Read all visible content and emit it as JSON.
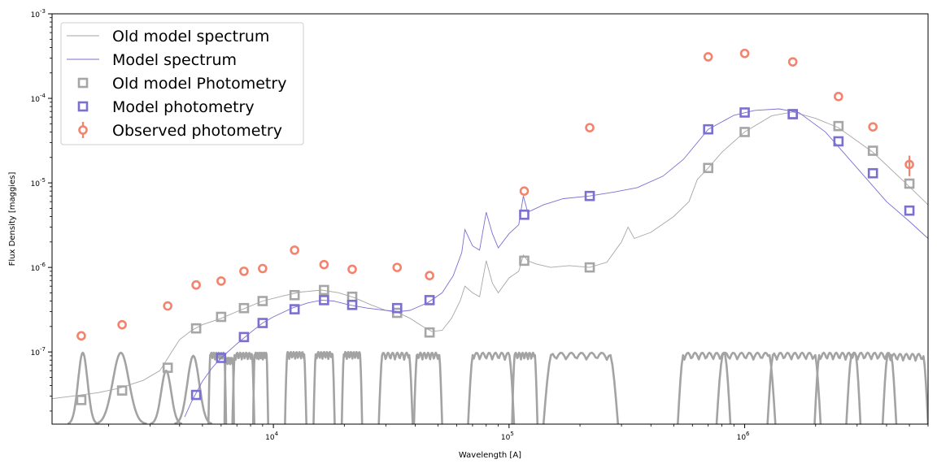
{
  "chart_data": {
    "type": "scatter",
    "xlabel": "Wavelength [A]",
    "ylabel": "Flux Density [maggies]",
    "xscale": "log",
    "yscale": "log",
    "xlim": [
      1150,
      6000000
    ],
    "ylim": [
      1.4e-08,
      0.001
    ],
    "x_ticks": [
      {
        "value": 10000,
        "label": "10^4"
      },
      {
        "value": 100000,
        "label": "10^5"
      },
      {
        "value": 1000000,
        "label": "10^6"
      }
    ],
    "y_ticks": [
      {
        "value": 1e-07,
        "label": "10^-7"
      },
      {
        "value": 1e-06,
        "label": "10^-6"
      },
      {
        "value": 1e-05,
        "label": "10^-5"
      },
      {
        "value": 0.0001,
        "label": "10^-4"
      },
      {
        "value": 0.001,
        "label": "10^-3"
      }
    ],
    "legend": {
      "position": "top-left",
      "entries": [
        "Old model spectrum",
        "Model spectrum",
        "Old model Photometry",
        "Model photometry",
        "Observed photometry"
      ]
    },
    "colors": {
      "old_model": "#a6a6a6",
      "model": "#7b6fd0",
      "observed": "#f4826c",
      "filters": "#a3a3a3"
    },
    "series": [
      {
        "name": "Old model spectrum",
        "kind": "line",
        "points": [
          [
            1150,
            2.8e-08
          ],
          [
            1400,
            3e-08
          ],
          [
            1800,
            3.3e-08
          ],
          [
            2200,
            3.7e-08
          ],
          [
            2800,
            4.6e-08
          ],
          [
            3300,
            6e-08
          ],
          [
            3700,
            1e-07
          ],
          [
            4000,
            1.4e-07
          ],
          [
            4500,
            1.8e-07
          ],
          [
            5000,
            2.1e-07
          ],
          [
            6000,
            2.5e-07
          ],
          [
            7000,
            3e-07
          ],
          [
            8000,
            3.5e-07
          ],
          [
            9000,
            4e-07
          ],
          [
            11000,
            4.6e-07
          ],
          [
            13000,
            5.1e-07
          ],
          [
            16000,
            5.4e-07
          ],
          [
            19000,
            5e-07
          ],
          [
            22000,
            4.4e-07
          ],
          [
            26000,
            3.6e-07
          ],
          [
            30000,
            3.1e-07
          ],
          [
            34000,
            2.9e-07
          ],
          [
            38000,
            2.5e-07
          ],
          [
            43000,
            2e-07
          ],
          [
            47000,
            1.75e-07
          ],
          [
            52000,
            1.8e-07
          ],
          [
            57000,
            2.5e-07
          ],
          [
            62000,
            4e-07
          ],
          [
            65000,
            6e-07
          ],
          [
            70000,
            5e-07
          ],
          [
            75000,
            4.5e-07
          ],
          [
            80000,
            1.2e-06
          ],
          [
            85000,
            6.5e-07
          ],
          [
            90000,
            5e-07
          ],
          [
            100000,
            7.5e-07
          ],
          [
            110000,
            9e-07
          ],
          [
            115000,
            1.4e-06
          ],
          [
            120000,
            1.2e-06
          ],
          [
            130000,
            1.1e-06
          ],
          [
            150000,
            1e-06
          ],
          [
            180000,
            1.05e-06
          ],
          [
            220000,
            1e-06
          ],
          [
            260000,
            1.15e-06
          ],
          [
            300000,
            2e-06
          ],
          [
            320000,
            3e-06
          ],
          [
            340000,
            2.2e-06
          ],
          [
            400000,
            2.6e-06
          ],
          [
            500000,
            4e-06
          ],
          [
            580000,
            6e-06
          ],
          [
            630000,
            1.1e-05
          ],
          [
            700000,
            1.5e-05
          ],
          [
            800000,
            2.3e-05
          ],
          [
            1000000,
            4e-05
          ],
          [
            1300000,
            6.2e-05
          ],
          [
            1600000,
            6.9e-05
          ],
          [
            2000000,
            5.8e-05
          ],
          [
            2500000,
            4.5e-05
          ],
          [
            3500000,
            2.3e-05
          ],
          [
            5000000,
            9e-06
          ],
          [
            6000000,
            5.5e-06
          ]
        ]
      },
      {
        "name": "Model spectrum",
        "kind": "line",
        "points": [
          [
            4200,
            1.7e-08
          ],
          [
            4500,
            2.6e-08
          ],
          [
            5000,
            4.5e-08
          ],
          [
            5500,
            6.5e-08
          ],
          [
            6000,
            8.5e-08
          ],
          [
            7000,
            1.25e-07
          ],
          [
            8000,
            1.7e-07
          ],
          [
            9000,
            2.2e-07
          ],
          [
            10000,
            2.6e-07
          ],
          [
            12000,
            3.3e-07
          ],
          [
            14000,
            3.8e-07
          ],
          [
            16000,
            4.1e-07
          ],
          [
            18000,
            4e-07
          ],
          [
            21000,
            3.6e-07
          ],
          [
            25000,
            3.3e-07
          ],
          [
            30000,
            3.1e-07
          ],
          [
            34000,
            3e-07
          ],
          [
            38000,
            3.1e-07
          ],
          [
            45000,
            3.8e-07
          ],
          [
            52000,
            5e-07
          ],
          [
            58000,
            8e-07
          ],
          [
            63000,
            1.5e-06
          ],
          [
            65000,
            2.8e-06
          ],
          [
            70000,
            1.8e-06
          ],
          [
            75000,
            1.6e-06
          ],
          [
            80000,
            4.5e-06
          ],
          [
            85000,
            2.5e-06
          ],
          [
            90000,
            1.7e-06
          ],
          [
            100000,
            2.5e-06
          ],
          [
            110000,
            3.2e-06
          ],
          [
            115000,
            7e-06
          ],
          [
            120000,
            4.5e-06
          ],
          [
            140000,
            5.5e-06
          ],
          [
            170000,
            6.5e-06
          ],
          [
            220000,
            7e-06
          ],
          [
            280000,
            7.8e-06
          ],
          [
            350000,
            8.8e-06
          ],
          [
            450000,
            1.2e-05
          ],
          [
            550000,
            1.9e-05
          ],
          [
            700000,
            4.3e-05
          ],
          [
            900000,
            6.3e-05
          ],
          [
            1100000,
            7.2e-05
          ],
          [
            1400000,
            7.5e-05
          ],
          [
            1700000,
            6.8e-05
          ],
          [
            2200000,
            4e-05
          ],
          [
            3000000,
            1.5e-05
          ],
          [
            4000000,
            6e-06
          ],
          [
            5000000,
            3.5e-06
          ],
          [
            6000000,
            2.2e-06
          ]
        ]
      },
      {
        "name": "Old model Photometry",
        "kind": "markers",
        "points": [
          [
            1530,
            2.7e-08
          ],
          [
            2280,
            3.5e-08
          ],
          [
            3560,
            6.5e-08
          ],
          [
            4700,
            1.9e-07
          ],
          [
            6000,
            2.6e-07
          ],
          [
            7500,
            3.3e-07
          ],
          [
            9000,
            4e-07
          ],
          [
            12300,
            4.7e-07
          ],
          [
            16400,
            5.4e-07
          ],
          [
            21600,
            4.5e-07
          ],
          [
            33500,
            2.9e-07
          ],
          [
            46000,
            1.7e-07
          ],
          [
            116000,
            1.2e-06
          ],
          [
            220000,
            1e-06
          ],
          [
            700000,
            1.5e-05
          ],
          [
            1000000,
            4e-05
          ],
          [
            1600000,
            6.5e-05
          ],
          [
            2500000,
            4.7e-05
          ],
          [
            3500000,
            2.4e-05
          ],
          [
            5000000,
            9.8e-06
          ]
        ]
      },
      {
        "name": "Model photometry",
        "kind": "markers",
        "points": [
          [
            4700,
            3.1e-08
          ],
          [
            6000,
            8.5e-08
          ],
          [
            7500,
            1.5e-07
          ],
          [
            9000,
            2.2e-07
          ],
          [
            12300,
            3.2e-07
          ],
          [
            16400,
            4.1e-07
          ],
          [
            21600,
            3.6e-07
          ],
          [
            33500,
            3.3e-07
          ],
          [
            46000,
            4.1e-07
          ],
          [
            116000,
            4.2e-06
          ],
          [
            220000,
            7e-06
          ],
          [
            700000,
            4.3e-05
          ],
          [
            1000000,
            6.8e-05
          ],
          [
            1600000,
            6.5e-05
          ],
          [
            2500000,
            3.1e-05
          ],
          [
            3500000,
            1.3e-05
          ],
          [
            5000000,
            4.7e-06
          ]
        ]
      },
      {
        "name": "Observed photometry",
        "kind": "errorbar",
        "points": [
          [
            1530,
            1.55e-07,
            0
          ],
          [
            2280,
            2.1e-07,
            0
          ],
          [
            3560,
            3.5e-07,
            0
          ],
          [
            4700,
            6.2e-07,
            0
          ],
          [
            6000,
            6.9e-07,
            0
          ],
          [
            7500,
            9e-07,
            0
          ],
          [
            9000,
            9.7e-07,
            0
          ],
          [
            12300,
            1.6e-06,
            0
          ],
          [
            16400,
            1.08e-06,
            0
          ],
          [
            21600,
            9.5e-07,
            0
          ],
          [
            33500,
            1e-06,
            0
          ],
          [
            46000,
            8e-07,
            0
          ],
          [
            116000,
            8e-06,
            0
          ],
          [
            220000,
            4.5e-05,
            0
          ],
          [
            700000,
            0.00031,
            0
          ],
          [
            1000000,
            0.00034,
            0
          ],
          [
            1600000,
            0.00027,
            0
          ],
          [
            2500000,
            0.000105,
            0
          ],
          [
            3500000,
            4.6e-05,
            0
          ],
          [
            5000000,
            1.65e-05,
            4.5e-06
          ]
        ]
      }
    ],
    "filter_curves": [
      {
        "lo": 1340,
        "hi": 1800,
        "peak": 9.8e-08,
        "shape": "bell"
      },
      {
        "lo": 1750,
        "hi": 2900,
        "peak": 9.8e-08,
        "shape": "bell"
      },
      {
        "lo": 3000,
        "hi": 4100,
        "peak": 6e-08,
        "shape": "bell"
      },
      {
        "lo": 3800,
        "hi": 5500,
        "peak": 9e-08,
        "shape": "bell"
      },
      {
        "lo": 5300,
        "hi": 6300,
        "peak": 9.8e-08,
        "shape": "box"
      },
      {
        "lo": 6200,
        "hi": 6800,
        "peak": 8.5e-08,
        "shape": "box"
      },
      {
        "lo": 6700,
        "hi": 8300,
        "peak": 9.8e-08,
        "shape": "box"
      },
      {
        "lo": 8200,
        "hi": 9500,
        "peak": 9.8e-08,
        "shape": "box"
      },
      {
        "lo": 11200,
        "hi": 13800,
        "peak": 1e-07,
        "shape": "box"
      },
      {
        "lo": 14800,
        "hi": 18200,
        "peak": 1e-07,
        "shape": "box"
      },
      {
        "lo": 19500,
        "hi": 23800,
        "peak": 1e-07,
        "shape": "box"
      },
      {
        "lo": 28000,
        "hi": 39000,
        "peak": 9.8e-08,
        "shape": "box"
      },
      {
        "lo": 39500,
        "hi": 52000,
        "peak": 9.8e-08,
        "shape": "box"
      },
      {
        "lo": 67000,
        "hi": 105000,
        "peak": 9.8e-08,
        "shape": "box"
      },
      {
        "lo": 103000,
        "hi": 132000,
        "peak": 9.8e-08,
        "shape": "box"
      },
      {
        "lo": 140000,
        "hi": 290000,
        "peak": 9.8e-08,
        "shape": "box"
      },
      {
        "lo": 520000,
        "hi": 870000,
        "peak": 9.8e-08,
        "shape": "box"
      },
      {
        "lo": 760000,
        "hi": 1350000,
        "peak": 9.8e-08,
        "shape": "box"
      },
      {
        "lo": 1250000,
        "hi": 2100000,
        "peak": 9.8e-08,
        "shape": "box"
      },
      {
        "lo": 1980000,
        "hi": 3100000,
        "peak": 9.8e-08,
        "shape": "box"
      },
      {
        "lo": 2700000,
        "hi": 4400000,
        "peak": 9.8e-08,
        "shape": "box"
      },
      {
        "lo": 3850000,
        "hi": 6000000,
        "peak": 9.5e-08,
        "shape": "box"
      }
    ]
  }
}
